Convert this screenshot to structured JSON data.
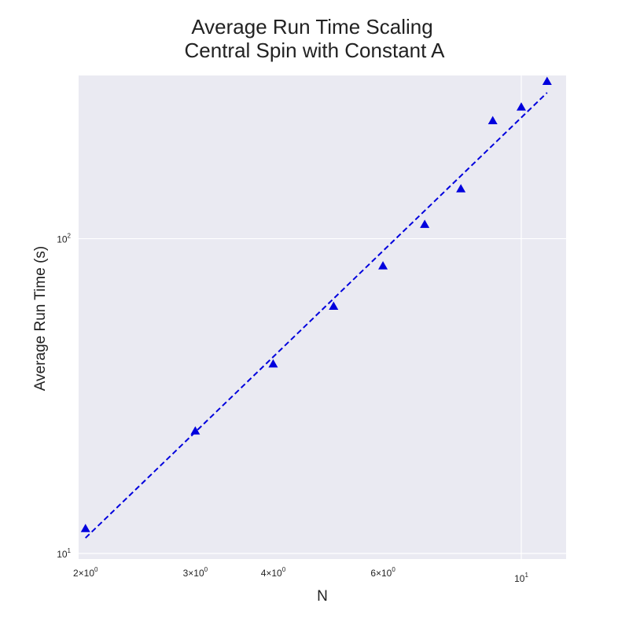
{
  "chart_data": {
    "type": "scatter",
    "title_lines": [
      "Average Run Time Scaling",
      "Central Spin with Constant A"
    ],
    "xlabel": "N",
    "ylabel": "Average Run Time (s)",
    "x_scale": "log",
    "y_scale": "log",
    "xlim": [
      1.95,
      11.8
    ],
    "ylim": [
      9.6,
      330
    ],
    "grid": true,
    "x_ticks": [
      {
        "value": 2,
        "base": "2×10",
        "exp": "0"
      },
      {
        "value": 3,
        "base": "3×10",
        "exp": "0"
      },
      {
        "value": 4,
        "base": "4×10",
        "exp": "0"
      },
      {
        "value": 6,
        "base": "6×10",
        "exp": "0"
      },
      {
        "value": 10,
        "base": "10",
        "exp": "1"
      }
    ],
    "y_ticks": [
      {
        "value": 10,
        "base": "10",
        "exp": "1"
      },
      {
        "value": 100,
        "base": "10",
        "exp": "2"
      }
    ],
    "series": [
      {
        "type": "scatter",
        "marker": "triangle",
        "color": "#0000dd",
        "x": [
          2,
          3,
          4,
          5,
          6,
          7,
          8,
          9,
          10,
          11
        ],
        "y": [
          12.0,
          24.5,
          40.0,
          61.0,
          82.0,
          111.0,
          144.0,
          237.0,
          262.0,
          316.0
        ]
      },
      {
        "type": "line",
        "style": "dashed",
        "color": "#0000dd",
        "x": [
          2,
          11
        ],
        "y": [
          11.2,
          291.0
        ]
      }
    ]
  }
}
